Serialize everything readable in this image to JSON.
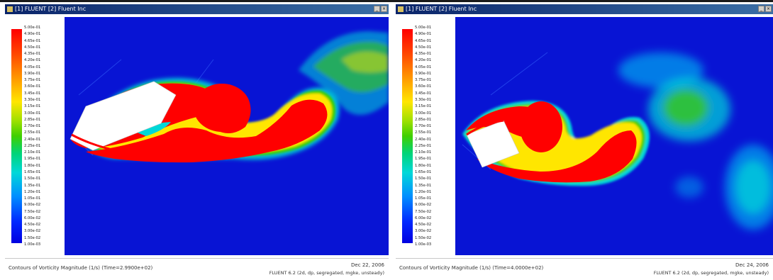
{
  "windows": [
    {
      "title": "[1] FLUENT [2] Fluent Inc",
      "caption": "Contours of Vorticity Magnitude (1/s)  (Time=2.9900e+02)",
      "date": "Dec 22, 2006",
      "solver": "FLUENT 6.2 (2d, dp, segregated, mgke, unsteady)",
      "legend": [
        "5.00e-01",
        "4.90e-01",
        "4.65e-01",
        "4.50e-01",
        "4.35e-01",
        "4.20e-01",
        "4.05e-01",
        "3.90e-01",
        "3.75e-01",
        "3.60e-01",
        "3.45e-01",
        "3.30e-01",
        "3.15e-01",
        "3.00e-01",
        "2.85e-01",
        "2.70e-01",
        "2.55e-01",
        "2.40e-01",
        "2.25e-01",
        "2.10e-01",
        "1.95e-01",
        "1.80e-01",
        "1.65e-01",
        "1.50e-01",
        "1.35e-01",
        "1.20e-01",
        "1.05e-01",
        "9.00e-02",
        "7.50e-02",
        "6.00e-02",
        "4.50e-02",
        "3.00e-02",
        "1.50e-02",
        "1.00e-03"
      ]
    },
    {
      "title": "[1] FLUENT [2] Fluent Inc",
      "caption": "Contours of Vorticity Magnitude (1/s)  (Time=4.0000e+02)",
      "date": "Dec 24, 2006",
      "solver": "FLUENT 6.2 (2d, dp, segregated, mgke, unsteady)",
      "legend": [
        "5.00e-01",
        "4.90e-01",
        "4.65e-01",
        "4.50e-01",
        "4.35e-01",
        "4.20e-01",
        "4.05e-01",
        "3.90e-01",
        "3.75e-01",
        "3.60e-01",
        "3.45e-01",
        "3.30e-01",
        "3.15e-01",
        "3.00e-01",
        "2.85e-01",
        "2.70e-01",
        "2.55e-01",
        "2.40e-01",
        "2.25e-01",
        "2.10e-01",
        "1.95e-01",
        "1.80e-01",
        "1.65e-01",
        "1.50e-01",
        "1.35e-01",
        "1.20e-01",
        "1.05e-01",
        "9.00e-02",
        "7.50e-02",
        "6.00e-02",
        "4.50e-02",
        "3.00e-02",
        "1.50e-02",
        "1.00e-03"
      ]
    }
  ],
  "colors": {
    "background_field": "#0814d4",
    "vortex_core": "#ff0000",
    "cyan": "#00d8d8",
    "green": "#3fcf00",
    "body": "#ffffff"
  }
}
